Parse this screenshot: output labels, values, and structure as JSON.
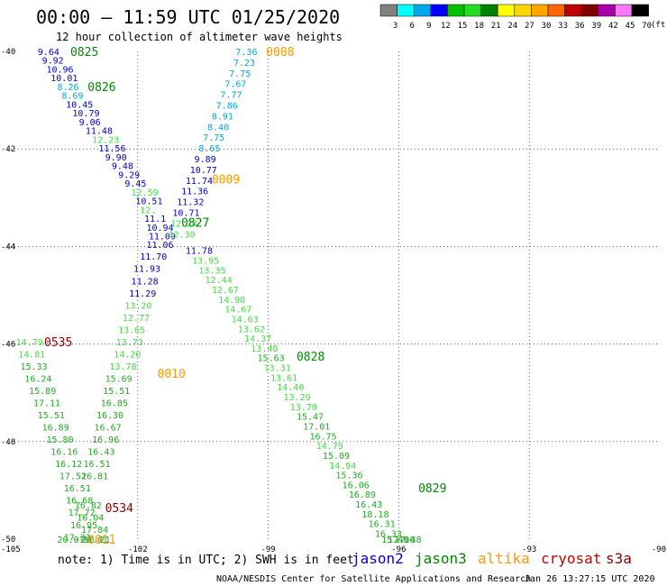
{
  "header": {
    "title": "00:00 – 11:59 UTC 01/25/2020",
    "subtitle": "12 hour collection of altimeter wave heights"
  },
  "colorbar": {
    "unit": "(ft)",
    "labels": [
      "3",
      "6",
      "9",
      "12",
      "15",
      "18",
      "21",
      "24",
      "27",
      "30",
      "33",
      "36",
      "39",
      "42",
      "45",
      "70"
    ],
    "colors": [
      "#808080",
      "#00ffff",
      "#00a8e8",
      "#0000ff",
      "#00c000",
      "#22dd22",
      "#008000",
      "#ffff00",
      "#ffd700",
      "#ffa500",
      "#ff6600",
      "#c00000",
      "#800000",
      "#aa00aa",
      "#ff77ff",
      "#000000"
    ]
  },
  "footer": {
    "note": "note: 1) Time is in UTC; 2) SWH is in feet",
    "credit": "NOAA/NESDIS Center for Satellite Applications and Research",
    "timestamp": "Jan 26 13:27:15 UTC 2020",
    "satellites": [
      {
        "name": "jason2",
        "color": "#0000cc"
      },
      {
        "name": "jason3",
        "color": "#008800"
      },
      {
        "name": "altika",
        "color": "#ff9900"
      },
      {
        "name": "cryosat",
        "color": "#cc0000"
      },
      {
        "name": "s3a",
        "color": "#880000"
      }
    ]
  },
  "chart_data": {
    "type": "scatter",
    "xlim": [
      -105,
      -90
    ],
    "ylim": [
      -50,
      -40
    ],
    "x_ticks": [
      "-105",
      "-102",
      "-99",
      "-96",
      "-93",
      "-90"
    ],
    "y_ticks": [
      "-40",
      "-42",
      "-44",
      "-46",
      "-48",
      "-50"
    ],
    "grid": "dotted",
    "points": [
      {
        "x": -104.3,
        "y": -40.0,
        "v": "9.64",
        "c": "#0000cc"
      },
      {
        "x": -104.2,
        "y": -40.18,
        "v": "9.92",
        "c": "#0000cc"
      },
      {
        "x": -104.1,
        "y": -40.36,
        "v": "10.96",
        "c": "#0000cc"
      },
      {
        "x": -104.0,
        "y": -40.54,
        "v": "10.01",
        "c": "#0000cc"
      },
      {
        "x": -103.85,
        "y": -40.72,
        "v": "8.26",
        "c": "#00a8e8"
      },
      {
        "x": -103.75,
        "y": -40.9,
        "v": "8.69",
        "c": "#00a8e8"
      },
      {
        "x": -103.65,
        "y": -41.08,
        "v": "10.45",
        "c": "#0000cc"
      },
      {
        "x": -103.5,
        "y": -41.26,
        "v": "10.79",
        "c": "#0000cc"
      },
      {
        "x": -103.35,
        "y": -41.44,
        "v": "9.06",
        "c": "#0000cc"
      },
      {
        "x": -103.2,
        "y": -41.62,
        "v": "11.48",
        "c": "#0000cc"
      },
      {
        "x": -103.05,
        "y": -41.8,
        "v": "12.23",
        "c": "#44dd44"
      },
      {
        "x": -102.9,
        "y": -41.98,
        "v": "11.56",
        "c": "#0000cc"
      },
      {
        "x": -102.75,
        "y": -42.16,
        "v": "9.90",
        "c": "#0000cc"
      },
      {
        "x": -102.6,
        "y": -42.34,
        "v": "9.48",
        "c": "#0000cc"
      },
      {
        "x": -102.45,
        "y": -42.52,
        "v": "9.29",
        "c": "#0000cc"
      },
      {
        "x": -102.3,
        "y": -42.7,
        "v": "9.45",
        "c": "#0000cc"
      },
      {
        "x": -102.15,
        "y": -42.88,
        "v": "12.59",
        "c": "#44dd44"
      },
      {
        "x": -102.05,
        "y": -43.06,
        "v": "10.51",
        "c": "#0000cc"
      },
      {
        "x": -101.95,
        "y": -43.24,
        "v": "12.",
        "c": "#44dd44"
      },
      {
        "x": -101.85,
        "y": -43.42,
        "v": "11.1",
        "c": "#0000cc"
      },
      {
        "x": -101.8,
        "y": -43.6,
        "v": "10.94",
        "c": "#0000cc"
      },
      {
        "x": -101.75,
        "y": -43.78,
        "v": "11.09",
        "c": "#0000cc"
      },
      {
        "x": -101.8,
        "y": -43.96,
        "v": "11.06",
        "c": "#0000cc"
      },
      {
        "x": -101.95,
        "y": -44.2,
        "v": "11.70",
        "c": "#0000cc"
      },
      {
        "x": -102.1,
        "y": -44.45,
        "v": "11.93",
        "c": "#0000cc"
      },
      {
        "x": -102.15,
        "y": -44.7,
        "v": "11.28",
        "c": "#0000cc"
      },
      {
        "x": -102.2,
        "y": -44.95,
        "v": "11.29",
        "c": "#0000cc"
      },
      {
        "x": -102.3,
        "y": -45.2,
        "v": "13.20",
        "c": "#44dd44"
      },
      {
        "x": -102.35,
        "y": -45.45,
        "v": "12.77",
        "c": "#44dd44"
      },
      {
        "x": -102.45,
        "y": -45.7,
        "v": "13.65",
        "c": "#44dd44"
      },
      {
        "x": -102.5,
        "y": -45.95,
        "v": "13.73",
        "c": "#44dd44"
      },
      {
        "x": -102.55,
        "y": -46.2,
        "v": "14.20",
        "c": "#44dd44"
      },
      {
        "x": -102.65,
        "y": -46.45,
        "v": "13.78",
        "c": "#44dd44"
      },
      {
        "x": -102.75,
        "y": -46.7,
        "v": "15.69",
        "c": "#22aa22"
      },
      {
        "x": -102.8,
        "y": -46.95,
        "v": "15.51",
        "c": "#22aa22"
      },
      {
        "x": -102.85,
        "y": -47.2,
        "v": "16.85",
        "c": "#22aa22"
      },
      {
        "x": -102.95,
        "y": -47.45,
        "v": "16.30",
        "c": "#22aa22"
      },
      {
        "x": -103.0,
        "y": -47.7,
        "v": "16.67",
        "c": "#22aa22"
      },
      {
        "x": -103.05,
        "y": -47.95,
        "v": "16.96",
        "c": "#22aa22"
      },
      {
        "x": -103.15,
        "y": -48.2,
        "v": "16.43",
        "c": "#22aa22"
      },
      {
        "x": -103.25,
        "y": -48.45,
        "v": "16.51",
        "c": "#22aa22"
      },
      {
        "x": -103.3,
        "y": -48.7,
        "v": "16.81",
        "c": "#22aa22"
      },
      {
        "x": -99.75,
        "y": -40.0,
        "v": "7.36",
        "c": "#00a8e8"
      },
      {
        "x": -99.8,
        "y": -40.22,
        "v": "7.23",
        "c": "#00a8e8"
      },
      {
        "x": -99.9,
        "y": -40.44,
        "v": "7.75",
        "c": "#00a8e8"
      },
      {
        "x": -100.0,
        "y": -40.66,
        "v": "7.67",
        "c": "#00a8e8"
      },
      {
        "x": -100.1,
        "y": -40.88,
        "v": "7.77",
        "c": "#00a8e8"
      },
      {
        "x": -100.2,
        "y": -41.1,
        "v": "7.86",
        "c": "#00a8e8"
      },
      {
        "x": -100.3,
        "y": -41.32,
        "v": "8.91",
        "c": "#00a8e8"
      },
      {
        "x": -100.4,
        "y": -41.54,
        "v": "8.40",
        "c": "#00a8e8"
      },
      {
        "x": -100.5,
        "y": -41.76,
        "v": "7.75",
        "c": "#00a8e8"
      },
      {
        "x": -100.6,
        "y": -41.98,
        "v": "8.65",
        "c": "#00a8e8"
      },
      {
        "x": -100.7,
        "y": -42.2,
        "v": "9.89",
        "c": "#0000cc"
      },
      {
        "x": -100.8,
        "y": -42.42,
        "v": "10.77",
        "c": "#0000cc"
      },
      {
        "x": -100.9,
        "y": -42.64,
        "v": "11.74",
        "c": "#0000cc"
      },
      {
        "x": -101.0,
        "y": -42.86,
        "v": "11.36",
        "c": "#0000cc"
      },
      {
        "x": -101.1,
        "y": -43.08,
        "v": "11.32",
        "c": "#0000cc"
      },
      {
        "x": -101.2,
        "y": -43.3,
        "v": "10.71",
        "c": "#0000cc"
      },
      {
        "x": -101.25,
        "y": -43.52,
        "v": "12.24",
        "c": "#44dd44"
      },
      {
        "x": -101.3,
        "y": -43.74,
        "v": "12.30",
        "c": "#44dd44"
      },
      {
        "x": -100.9,
        "y": -44.08,
        "v": "11.78",
        "c": "#0000cc"
      },
      {
        "x": -100.75,
        "y": -44.28,
        "v": "13.95",
        "c": "#44dd44"
      },
      {
        "x": -100.6,
        "y": -44.48,
        "v": "13.35",
        "c": "#44dd44"
      },
      {
        "x": -100.45,
        "y": -44.68,
        "v": "12.44",
        "c": "#44dd44"
      },
      {
        "x": -100.3,
        "y": -44.88,
        "v": "12.67",
        "c": "#44dd44"
      },
      {
        "x": -100.15,
        "y": -45.08,
        "v": "14.90",
        "c": "#44dd44"
      },
      {
        "x": -100.0,
        "y": -45.28,
        "v": "14.67",
        "c": "#44dd44"
      },
      {
        "x": -99.85,
        "y": -45.48,
        "v": "14.63",
        "c": "#44dd44"
      },
      {
        "x": -99.7,
        "y": -45.68,
        "v": "13.62",
        "c": "#44dd44"
      },
      {
        "x": -99.55,
        "y": -45.88,
        "v": "14.37",
        "c": "#44dd44"
      },
      {
        "x": -99.4,
        "y": -46.08,
        "v": "13.48",
        "c": "#44dd44"
      },
      {
        "x": -99.25,
        "y": -46.28,
        "v": "15.63",
        "c": "#22aa22"
      },
      {
        "x": -99.1,
        "y": -46.48,
        "v": "13.31",
        "c": "#44dd44"
      },
      {
        "x": -98.95,
        "y": -46.68,
        "v": "13.61",
        "c": "#44dd44"
      },
      {
        "x": -98.8,
        "y": -46.88,
        "v": "14.40",
        "c": "#44dd44"
      },
      {
        "x": -98.65,
        "y": -47.08,
        "v": "13.29",
        "c": "#44dd44"
      },
      {
        "x": -98.5,
        "y": -47.28,
        "v": "13.70",
        "c": "#44dd44"
      },
      {
        "x": -98.35,
        "y": -47.48,
        "v": "15.47",
        "c": "#22aa22"
      },
      {
        "x": -98.2,
        "y": -47.68,
        "v": "17.01",
        "c": "#22aa22"
      },
      {
        "x": -98.05,
        "y": -47.88,
        "v": "16.75",
        "c": "#22aa22"
      },
      {
        "x": -97.9,
        "y": -48.08,
        "v": "14.79",
        "c": "#44dd44"
      },
      {
        "x": -97.75,
        "y": -48.28,
        "v": "15.09",
        "c": "#22aa22"
      },
      {
        "x": -97.6,
        "y": -48.48,
        "v": "14.94",
        "c": "#44dd44"
      },
      {
        "x": -97.45,
        "y": -48.68,
        "v": "15.36",
        "c": "#22aa22"
      },
      {
        "x": -97.3,
        "y": -48.88,
        "v": "16.06",
        "c": "#22aa22"
      },
      {
        "x": -97.15,
        "y": -49.08,
        "v": "16.89",
        "c": "#22aa22"
      },
      {
        "x": -97.0,
        "y": -49.28,
        "v": "16.43",
        "c": "#22aa22"
      },
      {
        "x": -96.85,
        "y": -49.48,
        "v": "18.18",
        "c": "#22aa22"
      },
      {
        "x": -96.7,
        "y": -49.68,
        "v": "16.31",
        "c": "#22aa22"
      },
      {
        "x": -96.55,
        "y": -49.88,
        "v": "16.33",
        "c": "#22aa22"
      },
      {
        "x": -96.4,
        "y": -50.08,
        "v": "15.49",
        "c": "#22aa22"
      },
      {
        "x": -96.25,
        "y": -50.28,
        "v": "17.06",
        "c": "#22aa22"
      },
      {
        "x": -96.1,
        "y": -50.48,
        "v": "17.48",
        "c": "#22aa22"
      },
      {
        "x": -104.8,
        "y": -45.95,
        "v": "14.79",
        "c": "#44dd44"
      },
      {
        "x": -104.75,
        "y": -46.2,
        "v": "14.81",
        "c": "#44dd44"
      },
      {
        "x": -104.7,
        "y": -46.45,
        "v": "15.33",
        "c": "#22aa22"
      },
      {
        "x": -104.6,
        "y": -46.7,
        "v": "16.24",
        "c": "#22aa22"
      },
      {
        "x": -104.5,
        "y": -46.95,
        "v": "15.89",
        "c": "#22aa22"
      },
      {
        "x": -104.4,
        "y": -47.2,
        "v": "17.11",
        "c": "#22aa22"
      },
      {
        "x": -104.3,
        "y": -47.45,
        "v": "15.51",
        "c": "#22aa22"
      },
      {
        "x": -104.2,
        "y": -47.7,
        "v": "16.89",
        "c": "#22aa22"
      },
      {
        "x": -104.1,
        "y": -47.95,
        "v": "15.80",
        "c": "#22aa22"
      },
      {
        "x": -104.0,
        "y": -48.2,
        "v": "16.16",
        "c": "#22aa22"
      },
      {
        "x": -103.9,
        "y": -48.45,
        "v": "16.12",
        "c": "#22aa22"
      },
      {
        "x": -103.8,
        "y": -48.7,
        "v": "17.52",
        "c": "#22aa22"
      },
      {
        "x": -103.7,
        "y": -48.95,
        "v": "16.51",
        "c": "#22aa22"
      },
      {
        "x": -103.65,
        "y": -49.2,
        "v": "16.68",
        "c": "#22aa22"
      },
      {
        "x": -103.6,
        "y": -49.45,
        "v": "17.72",
        "c": "#22aa22"
      },
      {
        "x": -103.55,
        "y": -49.7,
        "v": "16.95",
        "c": "#22aa22"
      },
      {
        "x": -103.7,
        "y": -49.95,
        "v": "17.31",
        "c": "#22aa22"
      },
      {
        "x": -103.85,
        "y": -50.2,
        "v": "20.01",
        "c": "#22aa22"
      },
      {
        "x": -103.45,
        "y": -49.3,
        "v": "16.82",
        "c": "#22aa22"
      },
      {
        "x": -103.4,
        "y": -49.55,
        "v": "16.04",
        "c": "#22aa22"
      },
      {
        "x": -103.3,
        "y": -49.8,
        "v": "17.84",
        "c": "#22aa22"
      },
      {
        "x": -103.25,
        "y": -50.05,
        "v": "16.21",
        "c": "#22aa22"
      },
      {
        "x": -103.3,
        "y": -50.3,
        "v": "20.01",
        "c": "#22aa22"
      }
    ],
    "time_labels": [
      {
        "x": -103.55,
        "y": -40.0,
        "t": "0825",
        "c": "#008800"
      },
      {
        "x": -103.15,
        "y": -40.72,
        "t": "0826",
        "c": "#008800"
      },
      {
        "x": -101.0,
        "y": -43.5,
        "t": "0827",
        "c": "#008800"
      },
      {
        "x": -98.35,
        "y": -46.25,
        "t": "0828",
        "c": "#008800"
      },
      {
        "x": -95.55,
        "y": -48.95,
        "t": "0829",
        "c": "#008800"
      },
      {
        "x": -99.05,
        "y": -40.0,
        "t": "0008",
        "c": "#ff9900"
      },
      {
        "x": -100.3,
        "y": -42.62,
        "t": "0009",
        "c": "#ff9900"
      },
      {
        "x": -101.55,
        "y": -46.6,
        "t": "0010",
        "c": "#ff9900"
      },
      {
        "x": -103.15,
        "y": -50.3,
        "t": "0011",
        "c": "#ff9900"
      },
      {
        "x": -104.15,
        "y": -45.95,
        "t": "0535",
        "c": "#880000"
      },
      {
        "x": -102.75,
        "y": -49.35,
        "t": "0534",
        "c": "#880000"
      }
    ]
  }
}
